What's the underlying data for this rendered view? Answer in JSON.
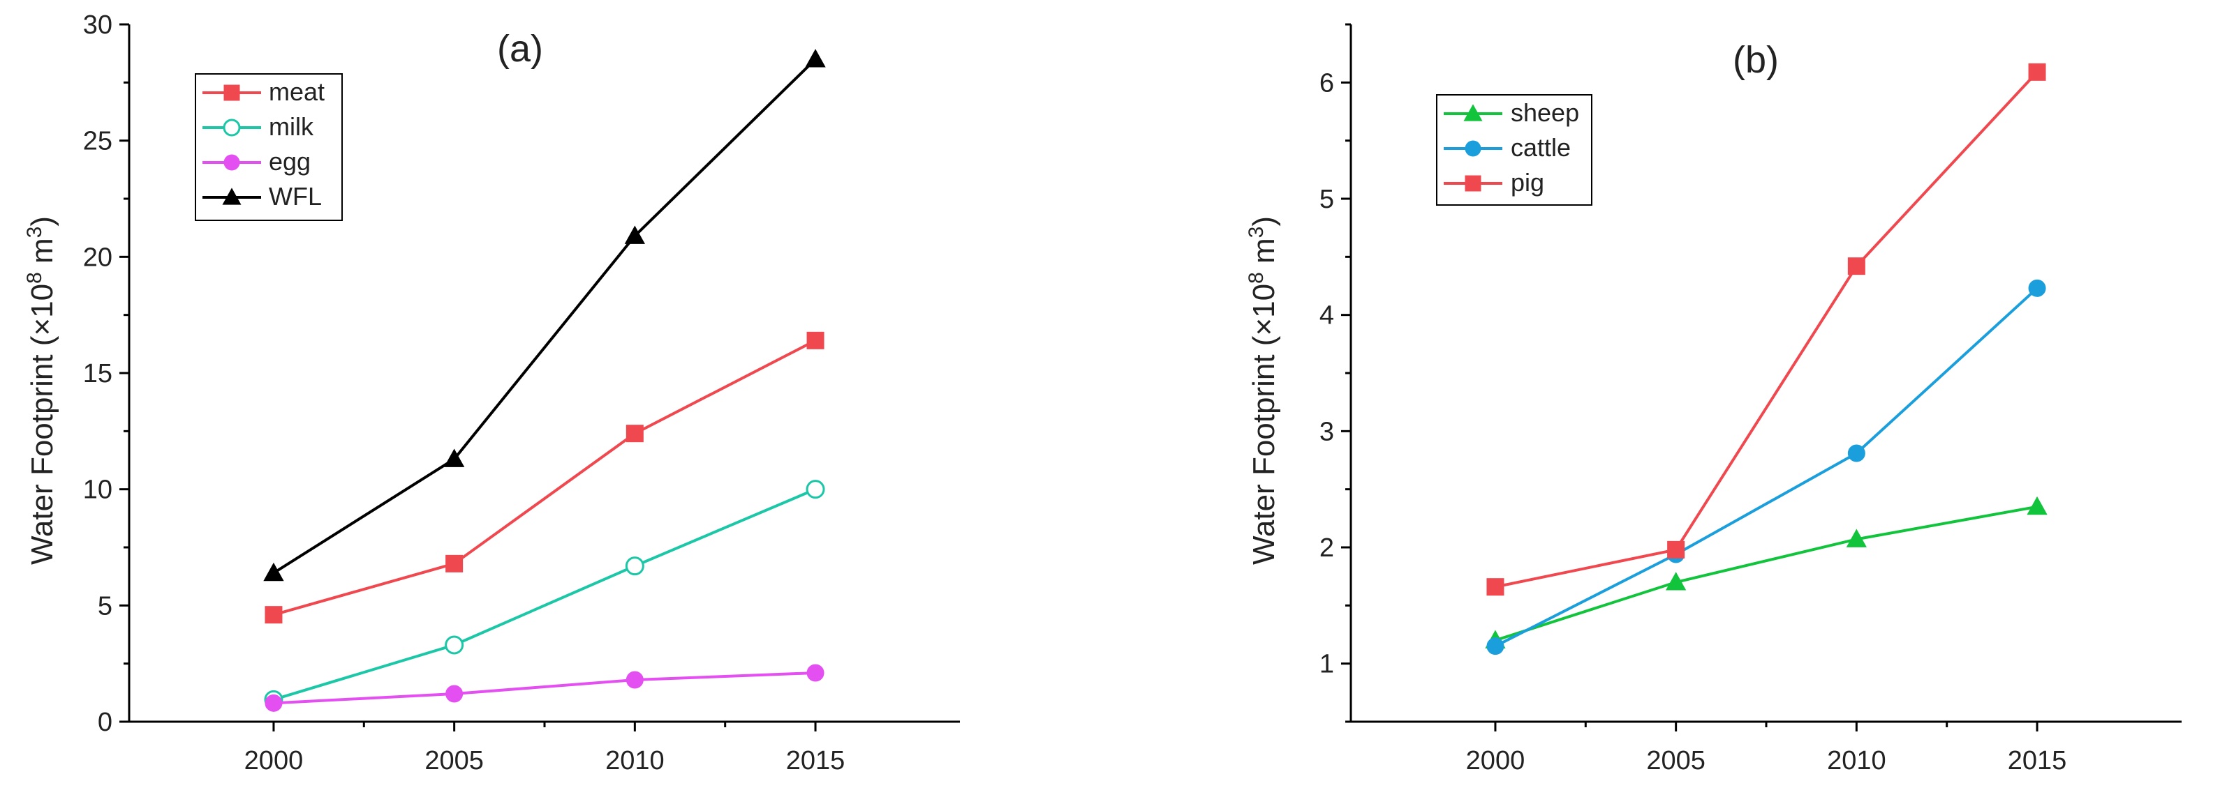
{
  "chart_data": [
    {
      "type": "line",
      "title": "(a)",
      "xlabel": "",
      "ylabel": "Water Footprint (×10⁸ m³)",
      "ylabel_parts": {
        "main": "Water Footprint (×10",
        "sup1": "8",
        "mid": " m",
        "sup2": "3",
        "end": ")"
      },
      "x": [
        2000,
        2005,
        2010,
        2015
      ],
      "x_ticks": [
        "2000",
        "2005",
        "2010",
        "2015"
      ],
      "xlim": [
        1996,
        2019
      ],
      "ylim": [
        0,
        30
      ],
      "y_ticks": [
        0,
        5,
        10,
        15,
        20,
        25,
        30
      ],
      "legend_position": "top-left",
      "series": [
        {
          "name": "meat",
          "values": [
            4.6,
            6.8,
            12.4,
            16.4
          ],
          "color": "#f0484f",
          "marker": "square",
          "filled": true
        },
        {
          "name": "milk",
          "values": [
            0.95,
            3.3,
            6.7,
            10.0
          ],
          "color": "#1cc7a8",
          "marker": "circle",
          "filled": false
        },
        {
          "name": "egg",
          "values": [
            0.8,
            1.2,
            1.8,
            2.1
          ],
          "color": "#e34ff0",
          "marker": "circle",
          "filled": true
        },
        {
          "name": "WFL",
          "values": [
            6.4,
            11.3,
            20.9,
            28.5
          ],
          "color": "#000000",
          "marker": "triangle",
          "filled": true
        }
      ]
    },
    {
      "type": "line",
      "title": "(b)",
      "xlabel": "",
      "ylabel": "Water Footprint (×10⁸ m³)",
      "ylabel_parts": {
        "main": "Water Footprint (×10",
        "sup1": "8",
        "mid": " m",
        "sup2": "3",
        "end": ")"
      },
      "x": [
        2000,
        2005,
        2010,
        2015
      ],
      "x_ticks": [
        "2000",
        "2005",
        "2010",
        "2015"
      ],
      "xlim": [
        1996,
        2019
      ],
      "ylim": [
        0.5,
        6.5
      ],
      "y_ticks": [
        1,
        2,
        3,
        4,
        5,
        6
      ],
      "legend_position": "top-left",
      "series": [
        {
          "name": "sheep",
          "values": [
            1.2,
            1.7,
            2.07,
            2.35
          ],
          "color": "#11c43c",
          "marker": "triangle",
          "filled": true
        },
        {
          "name": "cattle",
          "values": [
            1.15,
            1.94,
            2.81,
            4.23
          ],
          "color": "#1a9fdc",
          "marker": "circle",
          "filled": true
        },
        {
          "name": "pig",
          "values": [
            1.66,
            1.98,
            4.42,
            6.09
          ],
          "color": "#f0484f",
          "marker": "square",
          "filled": true
        }
      ]
    }
  ]
}
